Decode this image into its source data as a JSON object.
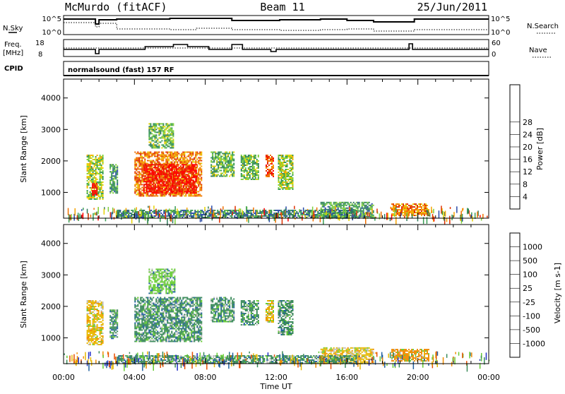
{
  "header": {
    "station": "McMurdo (fitACF)",
    "beam": "Beam 11",
    "date": "25/Jun/2011"
  },
  "strip_labels": {
    "nsky": "N.Sky",
    "nsearch": "N.Search",
    "freq_top": "Freq.",
    "freq_unit": "[MHz]",
    "nave": "Nave",
    "cpid": "CPID",
    "cpid_value": "normalsound (fast) 157 RF",
    "noise_ticks_left": [
      "10^5",
      "10^0"
    ],
    "noise_ticks_right": [
      "10^5",
      "10^0"
    ],
    "freq_ticks": [
      "18",
      "8"
    ],
    "nave_ticks": [
      "60",
      "0"
    ]
  },
  "colors": {
    "power": [
      "#0000ff",
      "#2a4aa8",
      "#2f7a5a",
      "#3a9c54",
      "#7fcf3c",
      "#e6d100",
      "#f5a300",
      "#f07000",
      "#e03000",
      "#ff0000"
    ],
    "velocity": [
      "#2430c8",
      "#2060a0",
      "#3a8a5a",
      "#66cc33",
      "#c0c0c0",
      "#e8b800",
      "#f08c00",
      "#e85000",
      "#ff0000"
    ]
  },
  "chart_data": [
    {
      "type": "heatmap",
      "name": "power",
      "ylabel": "Slant Range [km]",
      "xlabel": "Time UT",
      "x_ticks": [
        "00:00",
        "04:00",
        "08:00",
        "12:00",
        "16:00",
        "20:00",
        "00:00"
      ],
      "y_ticks": [
        "1000",
        "2000",
        "3000",
        "4000"
      ],
      "ylim": [
        180,
        4600
      ],
      "colorbar_label": "Power [dB]",
      "colorbar_ticks": [
        "4",
        "8",
        "12",
        "16",
        "20",
        "24",
        "28"
      ],
      "colorbar_range": [
        0,
        30
      ],
      "patches": [
        {
          "t": [
            1.3,
            2.2
          ],
          "r": [
            800,
            2200
          ],
          "v": 14
        },
        {
          "t": [
            1.6,
            1.9
          ],
          "r": [
            900,
            1300
          ],
          "v": 28
        },
        {
          "t": [
            2.6,
            3.0
          ],
          "r": [
            1000,
            1900
          ],
          "v": 10
        },
        {
          "t": [
            4.0,
            7.8
          ],
          "r": [
            900,
            2300
          ],
          "v": 22
        },
        {
          "t": [
            4.5,
            7.5
          ],
          "r": [
            1000,
            1900
          ],
          "v": 28
        },
        {
          "t": [
            4.8,
            6.2
          ],
          "r": [
            2400,
            3200
          ],
          "v": 12
        },
        {
          "t": [
            8.3,
            9.6
          ],
          "r": [
            1500,
            2300
          ],
          "v": 12
        },
        {
          "t": [
            10.0,
            11.0
          ],
          "r": [
            1400,
            2200
          ],
          "v": 12
        },
        {
          "t": [
            11.4,
            11.8
          ],
          "r": [
            1500,
            2200
          ],
          "v": 24
        },
        {
          "t": [
            12.1,
            12.9
          ],
          "r": [
            1100,
            2200
          ],
          "v": 14
        },
        {
          "t": [
            14.5,
            17.5
          ],
          "r": [
            200,
            700
          ],
          "v": 10
        },
        {
          "t": [
            18.5,
            20.6
          ],
          "r": [
            250,
            650
          ],
          "v": 22
        },
        {
          "t": [
            3.0,
            16.5
          ],
          "r": [
            200,
            450
          ],
          "v": 8
        }
      ]
    },
    {
      "type": "heatmap",
      "name": "velocity",
      "ylabel": "Slant Range [km]",
      "xlabel": "Time UT",
      "x_ticks": [
        "00:00",
        "04:00",
        "08:00",
        "12:00",
        "16:00",
        "20:00",
        "00:00"
      ],
      "y_ticks": [
        "1000",
        "2000",
        "3000",
        "4000"
      ],
      "ylim": [
        180,
        4600
      ],
      "colorbar_label": "Velocity [m s-1]",
      "colorbar_ticks": [
        "1000",
        "500",
        "100",
        "25",
        "-25",
        "-100",
        "-500",
        "-1000"
      ],
      "patches": [
        {
          "t": [
            1.3,
            2.2
          ],
          "r": [
            800,
            2200
          ],
          "v": -100
        },
        {
          "t": [
            2.6,
            3.0
          ],
          "r": [
            1000,
            1900
          ],
          "v": 100
        },
        {
          "t": [
            4.0,
            7.8
          ],
          "r": [
            900,
            2300
          ],
          "v": 100
        },
        {
          "t": [
            4.8,
            6.3
          ],
          "r": [
            2400,
            3200
          ],
          "v": 25
        },
        {
          "t": [
            8.3,
            9.6
          ],
          "r": [
            1500,
            2300
          ],
          "v": 100
        },
        {
          "t": [
            10.0,
            11.0
          ],
          "r": [
            1400,
            2200
          ],
          "v": 100
        },
        {
          "t": [
            11.4,
            11.8
          ],
          "r": [
            1500,
            2200
          ],
          "v": -100
        },
        {
          "t": [
            12.1,
            12.9
          ],
          "r": [
            1100,
            2200
          ],
          "v": 100
        },
        {
          "t": [
            14.5,
            17.5
          ],
          "r": [
            200,
            700
          ],
          "v": -100
        },
        {
          "t": [
            18.5,
            20.6
          ],
          "r": [
            250,
            650
          ],
          "v": -500
        },
        {
          "t": [
            3.0,
            16.5
          ],
          "r": [
            200,
            450
          ],
          "v": 100
        }
      ]
    }
  ]
}
